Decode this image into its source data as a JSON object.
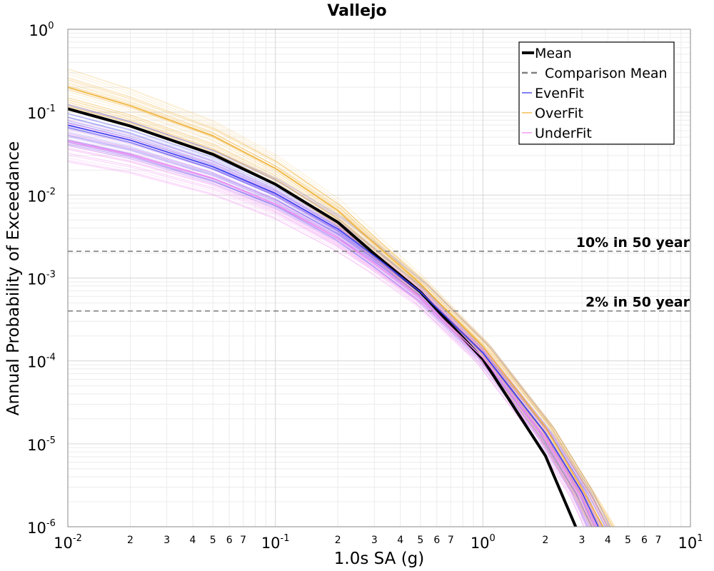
{
  "chart_data": {
    "type": "line",
    "title": "Vallejo",
    "xlabel": "1.0s SA (g)",
    "ylabel": "Annual Probability of Exceedance",
    "xscale": "log",
    "yscale": "log",
    "xlim": [
      0.01,
      10
    ],
    "ylim": [
      1e-06,
      1
    ],
    "grid": true,
    "legend_position": "top-right",
    "x_major_ticks": [
      {
        "base": "10",
        "exp": "-2"
      },
      {
        "base": "10",
        "exp": "-1"
      },
      {
        "base": "10",
        "exp": "0"
      },
      {
        "base": "10",
        "exp": "1"
      }
    ],
    "x_minor_tick_labels": [
      "2",
      "3",
      "4",
      "5",
      "6",
      "7"
    ],
    "y_major_ticks": [
      {
        "base": "10",
        "exp": "0"
      },
      {
        "base": "10",
        "exp": "-1"
      },
      {
        "base": "10",
        "exp": "-2"
      },
      {
        "base": "10",
        "exp": "-3"
      },
      {
        "base": "10",
        "exp": "-4"
      },
      {
        "base": "10",
        "exp": "-5"
      },
      {
        "base": "10",
        "exp": "-6"
      }
    ],
    "series": [
      {
        "name": "Mean",
        "color": "#000000",
        "style": "solid",
        "x": [
          0.01,
          0.02,
          0.05,
          0.1,
          0.2,
          0.3,
          0.5,
          1.0,
          2.0,
          2.8
        ],
        "y": [
          0.11,
          0.068,
          0.031,
          0.0135,
          0.0047,
          0.00195,
          0.00068,
          0.000105,
          7.2e-06,
          1e-06
        ]
      },
      {
        "name": "Comparison Mean",
        "color": "#808080",
        "style": "dashed",
        "x": [],
        "y": []
      },
      {
        "name": "EvenFit",
        "color": "#3a3af0",
        "style": "thin",
        "x": [
          0.01,
          0.02,
          0.05,
          0.1,
          0.2,
          0.3,
          0.5,
          1.0,
          2.0,
          3.0,
          3.6
        ],
        "y": [
          0.07,
          0.046,
          0.022,
          0.0105,
          0.0039,
          0.00185,
          0.00068,
          0.000125,
          1.35e-05,
          2.6e-06,
          1e-06
        ]
      },
      {
        "name": "OverFit",
        "color": "#f0b43c",
        "style": "thin",
        "x": [
          0.01,
          0.02,
          0.05,
          0.1,
          0.2,
          0.3,
          0.5,
          1.0,
          2.0,
          3.0,
          3.8
        ],
        "y": [
          0.2,
          0.12,
          0.052,
          0.021,
          0.0065,
          0.0026,
          0.00085,
          0.00015,
          1.6e-05,
          2.9e-06,
          1e-06
        ]
      },
      {
        "name": "UnderFit",
        "color": "#f08cf0",
        "style": "thin",
        "x": [
          0.01,
          0.02,
          0.05,
          0.1,
          0.2,
          0.3,
          0.5,
          1.0,
          2.0,
          3.0,
          3.5
        ],
        "y": [
          0.045,
          0.031,
          0.016,
          0.0078,
          0.003,
          0.0015,
          0.00058,
          0.00011,
          1.15e-05,
          2.2e-06,
          1e-06
        ]
      }
    ],
    "reference_lines": [
      {
        "label": "10% in 50 year",
        "y": 0.0021,
        "color": "#808080",
        "style": "dashed"
      },
      {
        "label": "2% in 50 year",
        "y": 0.0004,
        "color": "#808080",
        "style": "dashed"
      }
    ]
  }
}
